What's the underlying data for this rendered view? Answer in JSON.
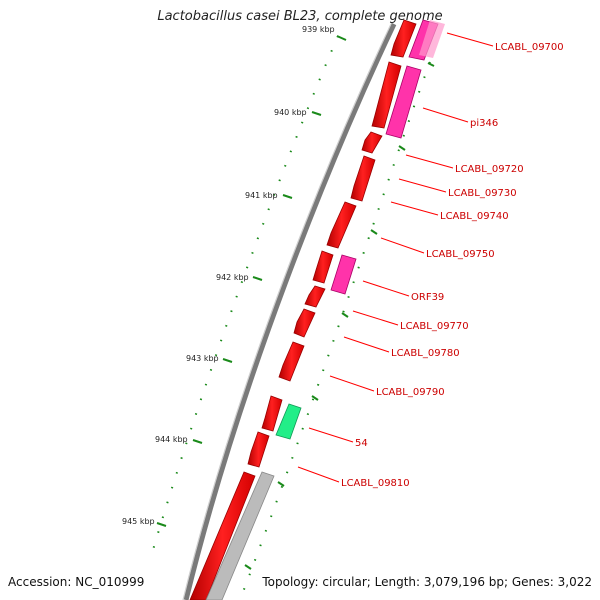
{
  "title": "Lactobacillus casei BL23, complete genome",
  "accession": "Accession: NC_010999",
  "summary": "Topology: circular; Length: 3,079,196 bp; Genes: 3,022",
  "ticks": [
    {
      "label": "939 kbp"
    },
    {
      "label": "940 kbp"
    },
    {
      "label": "941 kbp"
    },
    {
      "label": "942 kbp"
    },
    {
      "label": "943 kbp"
    },
    {
      "label": "944 kbp"
    },
    {
      "label": "945 kbp"
    }
  ],
  "genes": [
    {
      "label": "LCABL_09700",
      "color": "#ff1a1a"
    },
    {
      "label": "pi346",
      "color": "#ff33aa"
    },
    {
      "label": "LCABL_09720",
      "color": "#ff1a1a"
    },
    {
      "label": "LCABL_09730",
      "color": "#ff1a1a"
    },
    {
      "label": "LCABL_09740",
      "color": "#ff1a1a"
    },
    {
      "label": "LCABL_09750",
      "color": "#ff1a1a"
    },
    {
      "label": "ORF39",
      "color": "#ff33aa"
    },
    {
      "label": "LCABL_09770",
      "color": "#ff1a1a"
    },
    {
      "label": "LCABL_09780",
      "color": "#ff1a1a"
    },
    {
      "label": "LCABL_09790",
      "color": "#ff1a1a"
    },
    {
      "label": "54",
      "color": "#22ee88"
    },
    {
      "label": "LCABL_09810",
      "color": "#ff1a1a"
    }
  ],
  "colors": {
    "backbone": "#888888",
    "cds": "#ff1a1a",
    "pink_feature": "#ff33aa",
    "green_feature": "#22ee88",
    "grey_feature": "#bbbbbb",
    "tick": "#1a8a1a",
    "label_line": "#ff0000"
  }
}
